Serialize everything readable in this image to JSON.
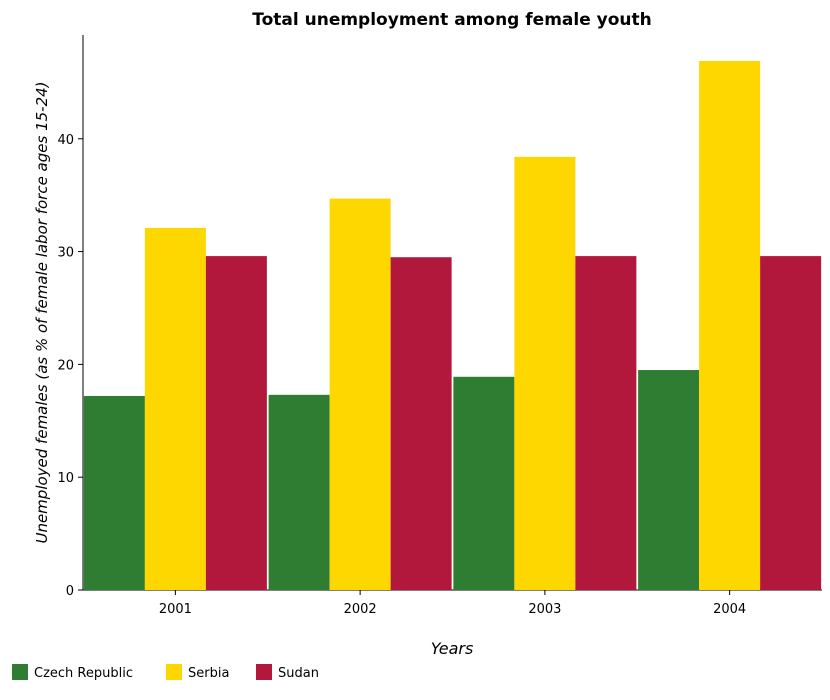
{
  "chart_data": {
    "type": "bar",
    "title": "Total unemployment among female youth",
    "xlabel": "Years",
    "ylabel": "Unemployed females (as % of female labor force ages 15-24)",
    "categories": [
      "2001",
      "2002",
      "2003",
      "2004"
    ],
    "series": [
      {
        "name": "Czech Republic",
        "color": "#2e7d32",
        "values": [
          17.2,
          17.3,
          18.9,
          19.5
        ]
      },
      {
        "name": "Serbia",
        "color": "#ffd700",
        "values": [
          32.1,
          34.7,
          38.4,
          46.9
        ]
      },
      {
        "name": "Sudan",
        "color": "#b2183b",
        "values": [
          29.6,
          29.5,
          29.6,
          29.6
        ]
      }
    ],
    "ylim": [
      0,
      49.2
    ],
    "yticks": [
      0,
      10,
      20,
      30,
      40
    ],
    "grid": false,
    "legend_position": "bottom-left"
  }
}
